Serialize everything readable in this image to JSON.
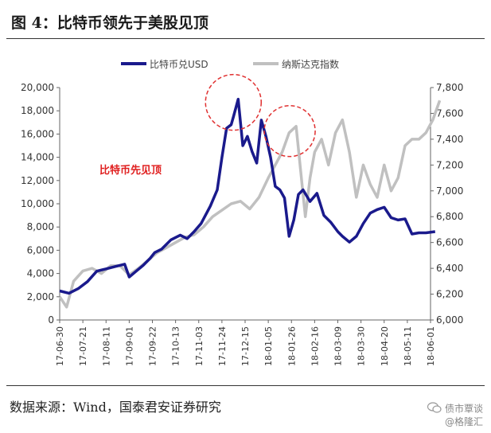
{
  "header": {
    "title": "图 4：比特币领先于美股见顶"
  },
  "footer": {
    "source": "数据来源：Wind，国泰君安证券研究"
  },
  "watermark": {
    "line1": "债市覃谈",
    "line2": "@格隆汇",
    "icon": "wechat-icon"
  },
  "colors": {
    "btc": "#1a1a8c",
    "nasdaq": "#c0c0c0",
    "circle": "#e03030",
    "annotation": "#e02020",
    "axis": "#666666"
  },
  "chart_data": {
    "type": "line",
    "legend_position": "top",
    "grid": false,
    "annotation": "比特币先见顶",
    "x_ticks": [
      "17-06-30",
      "17-07-21",
      "17-08-11",
      "17-09-01",
      "17-09-22",
      "17-10-13",
      "17-11-03",
      "17-11-24",
      "17-12-15",
      "18-01-05",
      "18-01-26",
      "18-02-16",
      "18-03-09",
      "18-03-30",
      "18-04-20",
      "18-05-11",
      "18-06-01"
    ],
    "y_left": {
      "min": 0,
      "max": 20000,
      "ticks": [
        "0",
        "2,000",
        "4,000",
        "6,000",
        "8,000",
        "10,000",
        "12,000",
        "14,000",
        "16,000",
        "18,000",
        "20,000"
      ]
    },
    "y_right": {
      "min": 6000,
      "max": 7800,
      "ticks": [
        "6,000",
        "6,200",
        "6,400",
        "6,600",
        "6,800",
        "7,000",
        "7,200",
        "7,400",
        "7,600",
        "7,800"
      ]
    },
    "series": [
      {
        "name": "比特币兑USD",
        "axis": "left",
        "x_index": [
          0,
          0.4,
          0.8,
          1.2,
          1.6,
          2,
          2.4,
          2.8,
          3,
          3.3,
          3.6,
          3.9,
          4.1,
          4.4,
          4.8,
          5.2,
          5.5,
          5.8,
          6.1,
          6.5,
          6.8,
          7,
          7.2,
          7.4,
          7.5,
          7.7,
          7.9,
          8.1,
          8.3,
          8.5,
          8.7,
          8.9,
          9.1,
          9.3,
          9.5,
          9.7,
          9.9,
          10.1,
          10.3,
          10.5,
          10.8,
          11.1,
          11.4,
          11.7,
          12,
          12.2,
          12.5,
          12.8,
          13.1,
          13.4,
          13.7,
          14,
          14.3,
          14.6,
          14.9,
          15.2,
          15.5,
          15.8,
          16.2
        ],
        "values": [
          2500,
          2300,
          2700,
          3300,
          4200,
          4400,
          4600,
          4800,
          3700,
          4200,
          4700,
          5300,
          5800,
          6100,
          6900,
          7300,
          7000,
          7600,
          8300,
          9800,
          11200,
          14000,
          16500,
          16800,
          17500,
          19000,
          15000,
          15800,
          14500,
          13500,
          17200,
          15800,
          14000,
          11500,
          11200,
          10500,
          7200,
          8600,
          10800,
          11200,
          10200,
          10900,
          9000,
          8400,
          7600,
          7200,
          6700,
          7200,
          8300,
          9200,
          9500,
          9700,
          8800,
          8600,
          8700,
          7400,
          7500,
          7500,
          7600
        ]
      },
      {
        "name": "纳斯达克指数",
        "axis": "right",
        "x_index": [
          0,
          0.3,
          0.6,
          1,
          1.4,
          1.8,
          2.2,
          2.6,
          3,
          3.4,
          3.8,
          4.2,
          4.6,
          5,
          5.4,
          5.8,
          6.2,
          6.6,
          7,
          7.4,
          7.8,
          8.2,
          8.6,
          9,
          9.3,
          9.6,
          9.9,
          10.2,
          10.4,
          10.6,
          10.8,
          11,
          11.3,
          11.6,
          11.9,
          12.2,
          12.5,
          12.8,
          13.1,
          13.4,
          13.7,
          14,
          14.3,
          14.6,
          14.9,
          15.2,
          15.5,
          15.8,
          16.1,
          16.4
        ],
        "values": [
          6180,
          6100,
          6300,
          6380,
          6400,
          6360,
          6420,
          6420,
          6350,
          6400,
          6460,
          6520,
          6560,
          6600,
          6640,
          6660,
          6720,
          6800,
          6850,
          6900,
          6920,
          6860,
          6950,
          7100,
          7200,
          7300,
          7450,
          7500,
          7150,
          6800,
          7100,
          7300,
          7400,
          7200,
          7450,
          7550,
          7300,
          6950,
          7200,
          7050,
          6950,
          7200,
          7000,
          7100,
          7350,
          7400,
          7400,
          7450,
          7550,
          7700
        ]
      }
    ]
  }
}
